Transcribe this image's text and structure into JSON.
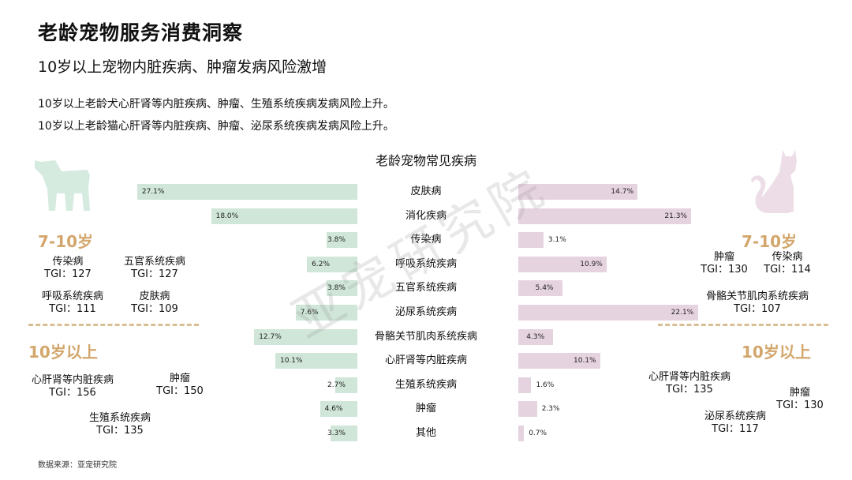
{
  "header": {
    "title": "老龄宠物服务消费洞察",
    "subtitle": "10岁以上宠物内脏疾病、肿瘤发病风险激增",
    "desc1": "10岁以上老龄犬心肝肾等内脏疾病、肿瘤、生殖系统疾病发病风险上升。",
    "desc2": "10岁以上老龄猫心肝肾等内脏疾病、肿瘤、泌尿系统疾病发病风险上升。"
  },
  "source": "数据来源：亚宠研究院",
  "watermark": "亚宠研究院",
  "colors": {
    "dog": "#cfe6d8",
    "cat": "#e6d3e0",
    "accent": "#d3a66c",
    "silhouette_dog": "#d5ebe0",
    "silhouette_cat": "#ecdde6"
  },
  "icons": {
    "dog": "dog-silhouette-icon",
    "cat": "cat-silhouette-icon"
  },
  "dog_panel": {
    "age1": "7-10岁",
    "age1_items": [
      {
        "name": "传染病",
        "tgi": "TGI：127"
      },
      {
        "name": "五官系统疾病",
        "tgi": "TGI：127"
      },
      {
        "name": "呼吸系统疾病",
        "tgi": "TGI：111"
      },
      {
        "name": "皮肤病",
        "tgi": "TGI：109"
      }
    ],
    "age2": "10岁以上",
    "age2_items": [
      {
        "name": "心肝肾等内脏疾病",
        "tgi": "TGI：156"
      },
      {
        "name": "肿瘤",
        "tgi": "TGI：150"
      },
      {
        "name": "生殖系统疾病",
        "tgi": "TGI：135"
      }
    ]
  },
  "cat_panel": {
    "age1": "7-10岁",
    "age1_items": [
      {
        "name": "肿瘤",
        "tgi": "TGI：130"
      },
      {
        "name": "传染病",
        "tgi": "TGI：114"
      },
      {
        "name": "骨骼关节肌肉系统疾病",
        "tgi": "TGI：107"
      }
    ],
    "age2": "10岁以上",
    "age2_items": [
      {
        "name": "心肝肾等内脏疾病",
        "tgi": "TGI：135"
      },
      {
        "name": "肿瘤",
        "tgi": "TGI：130"
      },
      {
        "name": "泌尿系统疾病",
        "tgi": "TGI：117"
      }
    ]
  },
  "chart_data": {
    "type": "bar",
    "title": "老龄宠物常见疾病",
    "categories": [
      "皮肤病",
      "消化疾病",
      "传染病",
      "呼吸系统疾病",
      "五官系统疾病",
      "泌尿系统疾病",
      "骨骼关节肌肉系统疾病",
      "心肝肾等内脏疾病",
      "生殖系统疾病",
      "肿瘤",
      "其他"
    ],
    "series": [
      {
        "side": "left",
        "values": [
          27.1,
          18.0,
          3.8,
          6.2,
          3.8,
          7.6,
          12.7,
          10.1,
          2.7,
          4.6,
          3.3
        ],
        "labels": [
          "27.1%",
          "18.0%",
          "3.8%",
          "6.2%",
          "3.8%",
          "7.6%",
          "12.7%",
          "10.1%",
          "2.7%",
          "4.6%",
          "3.3%"
        ]
      },
      {
        "side": "right",
        "values": [
          14.7,
          21.3,
          3.1,
          10.9,
          5.4,
          22.1,
          4.3,
          10.1,
          1.6,
          2.3,
          0.7
        ],
        "labels": [
          "14.7%",
          "21.3%",
          "3.1%",
          "10.9%",
          "5.4%",
          "22.1%",
          "4.3%",
          "10.1%",
          "1.6%",
          "2.3%",
          "0.7%"
        ]
      }
    ]
  }
}
